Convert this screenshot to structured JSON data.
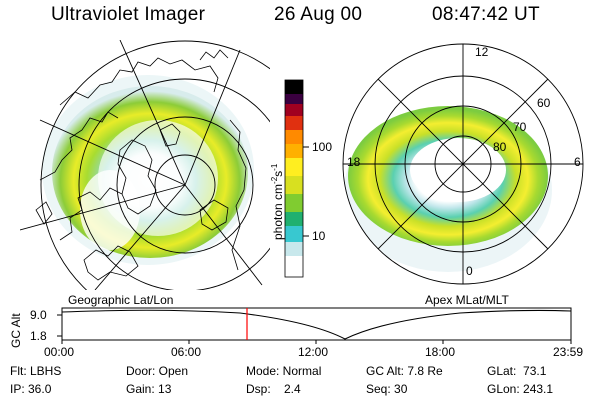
{
  "header": {
    "instrument": "Ultraviolet Imager",
    "date": "26 Aug 00",
    "time": "08:47:42 UT"
  },
  "left_panel": {
    "projection_label": "Geographic Lat/Lon"
  },
  "right_panel": {
    "projection_label": "Apex MLat/MLT",
    "mlt_labels": [
      "12",
      "18",
      "6",
      "0"
    ],
    "mlat_labels": [
      "60",
      "70",
      "80"
    ]
  },
  "colorbar": {
    "unit_label": "photon cm",
    "unit_sup1": "-2",
    "unit_mid": "s",
    "unit_sup2": "-1",
    "tick_labels": [
      "100",
      "10"
    ],
    "scale": "log",
    "colors": [
      "#ffffff",
      "#d8ecf0",
      "#38c8d0",
      "#20b060",
      "#70cc30",
      "#d0e020",
      "#ffee20",
      "#ffa000",
      "#e03010",
      "#a00020",
      "#400040",
      "#000000"
    ]
  },
  "altitude_plot": {
    "ylabel": "GC Alt",
    "y_ticks": [
      "9.0",
      "1.8"
    ],
    "x_ticks": [
      "00:00",
      "06:00",
      "12:00",
      "18:00",
      "23:59"
    ],
    "marker_color": "#ff0000"
  },
  "status": {
    "col1": [
      "Flt: LBHS",
      "IP: 36.0"
    ],
    "col2": [
      "Door: Open",
      "Gain: 13"
    ],
    "col3": [
      "Mode: Normal",
      "Dsp:    2.4"
    ],
    "col4": [
      "GC Alt: 7.8 Re",
      "Seq: 30"
    ],
    "col5": [
      "GLat:  73.1",
      "GLon: 243.1"
    ]
  }
}
